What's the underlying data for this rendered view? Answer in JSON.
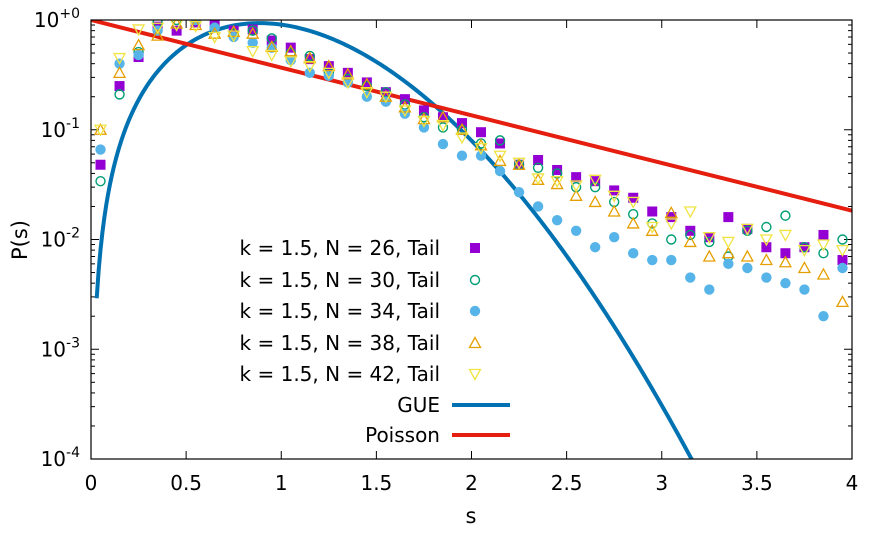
{
  "chart_data": {
    "type": "scatter",
    "title": "",
    "xlabel": "s",
    "ylabel": "P(s)",
    "xlim": [
      0,
      4
    ],
    "ylim": [
      0.0001,
      1
    ],
    "yscale": "log",
    "x_ticks": [
      {
        "value": 0,
        "label": "0"
      },
      {
        "value": 0.5,
        "label": "0.5"
      },
      {
        "value": 1,
        "label": "1"
      },
      {
        "value": 1.5,
        "label": "1.5"
      },
      {
        "value": 2,
        "label": "2"
      },
      {
        "value": 2.5,
        "label": "2.5"
      },
      {
        "value": 3,
        "label": "3"
      },
      {
        "value": 3.5,
        "label": "3.5"
      },
      {
        "value": 4,
        "label": "4"
      }
    ],
    "y_ticks": [
      {
        "value": 1,
        "base": "10",
        "exp": "+0"
      },
      {
        "value": 0.1,
        "base": "10",
        "exp": "-1"
      },
      {
        "value": 0.01,
        "base": "10",
        "exp": "-2"
      },
      {
        "value": 0.001,
        "base": "10",
        "exp": "-3"
      },
      {
        "value": 0.0001,
        "base": "10",
        "exp": "-4"
      }
    ],
    "legend_position": "bottom-left",
    "x": [
      0.05,
      0.15,
      0.25,
      0.35,
      0.45,
      0.55,
      0.65,
      0.75,
      0.85,
      0.95,
      1.05,
      1.15,
      1.25,
      1.35,
      1.45,
      1.55,
      1.65,
      1.75,
      1.85,
      1.95,
      2.05,
      2.15,
      2.25,
      2.35,
      2.45,
      2.55,
      2.65,
      2.75,
      2.85,
      2.95,
      3.05,
      3.15,
      3.25,
      3.35,
      3.45,
      3.55,
      3.65,
      3.75,
      3.85,
      3.95
    ],
    "series": [
      {
        "name": "k = 1.5, N = 26, Tail",
        "marker": "square-filled",
        "color": "#9400d3",
        "values": [
          0.048,
          0.25,
          0.46,
          0.87,
          0.8,
          0.95,
          0.9,
          0.8,
          0.82,
          0.65,
          0.56,
          0.44,
          0.38,
          0.33,
          0.27,
          0.22,
          0.19,
          0.15,
          0.13,
          0.115,
          0.095,
          0.075,
          0.048,
          0.053,
          0.043,
          0.037,
          0.034,
          0.028,
          0.024,
          0.018,
          0.016,
          0.012,
          0.0105,
          0.016,
          0.0125,
          0.0085,
          0.0075,
          0.0085,
          0.011,
          0.0065
        ]
      },
      {
        "name": "k = 1.5, N = 30, Tail",
        "marker": "circle-open",
        "color": "#009e73",
        "values": [
          0.034,
          0.21,
          0.51,
          0.95,
          1.0,
          1.0,
          0.85,
          0.75,
          0.8,
          0.68,
          0.5,
          0.47,
          0.33,
          0.29,
          0.25,
          0.22,
          0.17,
          0.13,
          0.105,
          0.1,
          0.075,
          0.08,
          0.048,
          0.045,
          0.04,
          0.03,
          0.03,
          0.022,
          0.017,
          0.014,
          0.01,
          0.011,
          0.0095,
          0.007,
          0.012,
          0.013,
          0.0165,
          0.0085,
          0.0075,
          0.01
        ]
      },
      {
        "name": "k = 1.5, N = 34, Tail",
        "marker": "circle-filled",
        "color": "#56b4e9",
        "values": [
          0.066,
          0.4,
          0.48,
          0.8,
          1.1,
          1.0,
          0.85,
          0.7,
          0.62,
          0.56,
          0.43,
          0.33,
          0.31,
          0.27,
          0.2,
          0.18,
          0.14,
          0.105,
          0.074,
          0.058,
          0.058,
          0.042,
          0.027,
          0.02,
          0.015,
          0.012,
          0.0085,
          0.0105,
          0.0075,
          0.0065,
          0.0065,
          0.0045,
          0.0035,
          0.006,
          0.0055,
          0.0045,
          0.004,
          0.0035,
          0.002,
          0.0055
        ]
      },
      {
        "name": "k = 1.5, N = 38, Tail",
        "marker": "triangle-up-open",
        "color": "#e69f00",
        "values": [
          0.1,
          0.33,
          0.59,
          0.72,
          0.93,
          0.9,
          0.75,
          0.78,
          0.75,
          0.57,
          0.52,
          0.45,
          0.38,
          0.32,
          0.26,
          0.2,
          0.16,
          0.125,
          0.13,
          0.1,
          0.072,
          0.052,
          0.048,
          0.035,
          0.032,
          0.025,
          0.022,
          0.018,
          0.014,
          0.012,
          0.0175,
          0.0095,
          0.007,
          0.0075,
          0.007,
          0.0065,
          0.0062,
          0.0055,
          0.0048,
          0.0027
        ]
      },
      {
        "name": "k = 1.5, N = 42, Tail",
        "marker": "triangle-down-open",
        "color": "#f0e442",
        "values": [
          0.1,
          0.45,
          0.82,
          0.85,
          0.9,
          0.88,
          0.7,
          0.72,
          0.52,
          0.48,
          0.42,
          0.38,
          0.33,
          0.27,
          0.22,
          0.2,
          0.15,
          0.12,
          0.11,
          0.085,
          0.068,
          0.058,
          0.05,
          0.036,
          0.034,
          0.031,
          0.035,
          0.025,
          0.022,
          0.013,
          0.014,
          0.018,
          0.0105,
          0.0095,
          0.0125,
          0.01,
          0.011,
          0.008,
          0.009,
          0.008
        ]
      }
    ],
    "lines": [
      {
        "name": "GUE",
        "color": "#0072b2",
        "formula": "P(s) = (32/pi^2) s^2 exp(-4 s^2 / pi)"
      },
      {
        "name": "Poisson",
        "color": "#e51e10",
        "formula": "P(s) = exp(-s)"
      }
    ]
  }
}
